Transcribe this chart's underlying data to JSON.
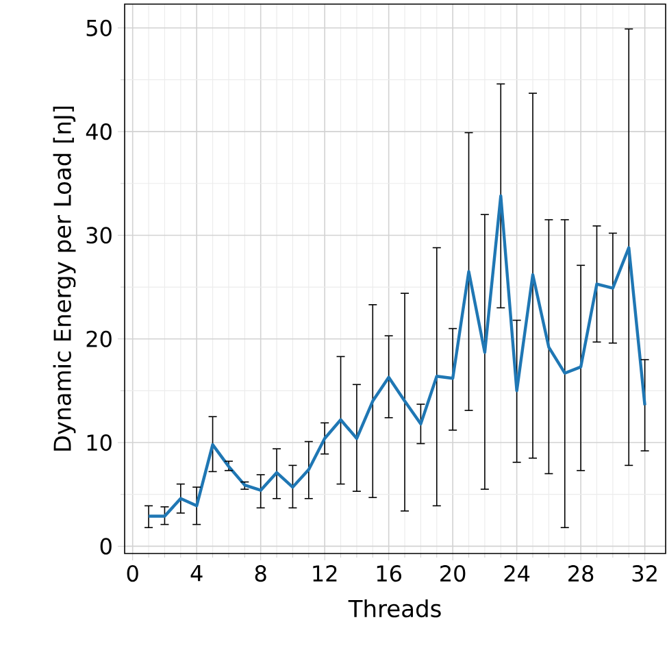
{
  "chart_data": {
    "type": "line",
    "xlabel": "Threads",
    "ylabel": "Dynamic Energy per Load [nJ]",
    "x": [
      1,
      2,
      3,
      4,
      5,
      6,
      7,
      8,
      9,
      10,
      11,
      12,
      13,
      14,
      15,
      16,
      17,
      18,
      19,
      20,
      21,
      22,
      23,
      24,
      25,
      26,
      27,
      28,
      29,
      30,
      31,
      32
    ],
    "values": [
      2.9,
      2.9,
      4.6,
      3.9,
      9.8,
      7.7,
      5.9,
      5.4,
      7.1,
      5.7,
      7.4,
      10.4,
      12.2,
      10.4,
      14.0,
      16.3,
      14.0,
      11.8,
      16.4,
      16.2,
      26.5,
      18.7,
      33.8,
      15.0,
      26.2,
      19.2,
      16.7,
      17.3,
      25.3,
      24.9,
      28.8,
      13.6
    ],
    "errors": [
      [
        1.8,
        3.9
      ],
      [
        2.1,
        3.8
      ],
      [
        3.2,
        6.0
      ],
      [
        2.1,
        5.7
      ],
      [
        7.2,
        12.5
      ],
      [
        7.3,
        8.2
      ],
      [
        5.5,
        6.2
      ],
      [
        3.7,
        6.9
      ],
      [
        4.6,
        9.4
      ],
      [
        3.7,
        7.8
      ],
      [
        4.6,
        10.1
      ],
      [
        8.9,
        11.9
      ],
      [
        6.0,
        18.3
      ],
      [
        5.3,
        15.6
      ],
      [
        4.7,
        23.3
      ],
      [
        12.4,
        20.3
      ],
      [
        3.4,
        24.4
      ],
      [
        9.9,
        13.7
      ],
      [
        3.9,
        28.8
      ],
      [
        11.2,
        21.0
      ],
      [
        13.1,
        39.9
      ],
      [
        5.5,
        32.0
      ],
      [
        23.0,
        44.6
      ],
      [
        8.1,
        21.8
      ],
      [
        8.5,
        43.7
      ],
      [
        7.0,
        31.5
      ],
      [
        1.8,
        31.5
      ],
      [
        7.3,
        27.1
      ],
      [
        19.7,
        30.9
      ],
      [
        19.6,
        30.2
      ],
      [
        7.8,
        49.9
      ],
      [
        9.2,
        18.0
      ]
    ],
    "color": "#1f77b4",
    "grid": true,
    "xlim": [
      -0.5,
      33.3
    ],
    "ylim": [
      -0.7,
      52.3
    ],
    "xticks": [
      0,
      4,
      8,
      12,
      16,
      20,
      24,
      28,
      32
    ],
    "yticks": [
      0,
      10,
      20,
      30,
      40,
      50
    ]
  }
}
